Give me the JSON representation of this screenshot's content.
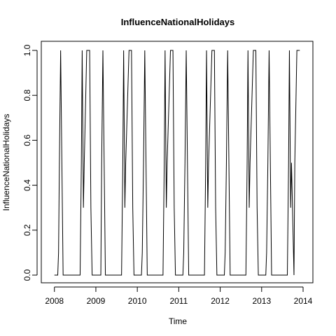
{
  "chart_data": {
    "type": "line",
    "title": "InfluenceNationalHolidays",
    "xlabel": "Time",
    "ylabel": "InfluenceNationalHolidays",
    "xlim": [
      2007.92,
      2014.0
    ],
    "ylim": [
      0.0,
      1.0
    ],
    "grid": false,
    "x_ticks": [
      {
        "value": 2008,
        "label": "2008"
      },
      {
        "value": 2009,
        "label": "2009"
      },
      {
        "value": 2010,
        "label": "2010"
      },
      {
        "value": 2011,
        "label": "2011"
      },
      {
        "value": 2012,
        "label": "2012"
      },
      {
        "value": 2013,
        "label": "2013"
      },
      {
        "value": 2014,
        "label": "2014"
      }
    ],
    "y_ticks": [
      {
        "value": 0.0,
        "label": "0.0"
      },
      {
        "value": 0.2,
        "label": "0.2"
      },
      {
        "value": 0.4,
        "label": "0.4"
      },
      {
        "value": 0.6,
        "label": "0.6"
      },
      {
        "value": 0.8,
        "label": "0.8"
      },
      {
        "value": 1.0,
        "label": "1.0"
      }
    ],
    "series": [
      {
        "line_color": "#000000",
        "points": [
          [
            2008.0,
            0.0
          ],
          [
            2008.08,
            0.0
          ],
          [
            2008.1,
            0.1
          ],
          [
            2008.12,
            0.5
          ],
          [
            2008.15,
            1.0
          ],
          [
            2008.18,
            0.5
          ],
          [
            2008.21,
            0.0
          ],
          [
            2008.4,
            0.0
          ],
          [
            2008.55,
            0.0
          ],
          [
            2008.62,
            0.0
          ],
          [
            2008.65,
            0.5
          ],
          [
            2008.67,
            1.0
          ],
          [
            2008.7,
            0.3
          ],
          [
            2008.72,
            0.5
          ],
          [
            2008.78,
            1.0
          ],
          [
            2008.85,
            1.0
          ],
          [
            2008.88,
            0.3
          ],
          [
            2008.91,
            0.0
          ],
          [
            2008.97,
            0.0
          ],
          [
            2009.0,
            0.0
          ],
          [
            2009.07,
            0.0
          ],
          [
            2009.12,
            0.0
          ],
          [
            2009.14,
            0.5
          ],
          [
            2009.17,
            1.0
          ],
          [
            2009.2,
            0.5
          ],
          [
            2009.23,
            0.0
          ],
          [
            2009.4,
            0.0
          ],
          [
            2009.55,
            0.0
          ],
          [
            2009.62,
            0.0
          ],
          [
            2009.65,
            0.5
          ],
          [
            2009.67,
            1.0
          ],
          [
            2009.7,
            0.3
          ],
          [
            2009.72,
            0.5
          ],
          [
            2009.8,
            1.0
          ],
          [
            2009.86,
            1.0
          ],
          [
            2009.89,
            0.3
          ],
          [
            2009.92,
            0.0
          ],
          [
            2009.97,
            0.0
          ],
          [
            2010.0,
            0.0
          ],
          [
            2010.1,
            0.0
          ],
          [
            2010.12,
            0.1
          ],
          [
            2010.15,
            0.5
          ],
          [
            2010.18,
            1.0
          ],
          [
            2010.21,
            0.5
          ],
          [
            2010.24,
            0.0
          ],
          [
            2010.4,
            0.0
          ],
          [
            2010.55,
            0.0
          ],
          [
            2010.62,
            0.0
          ],
          [
            2010.65,
            0.5
          ],
          [
            2010.67,
            1.0
          ],
          [
            2010.7,
            0.3
          ],
          [
            2010.72,
            0.5
          ],
          [
            2010.8,
            1.0
          ],
          [
            2010.86,
            1.0
          ],
          [
            2010.89,
            0.3
          ],
          [
            2010.92,
            0.0
          ],
          [
            2010.97,
            0.0
          ],
          [
            2011.0,
            0.0
          ],
          [
            2011.1,
            0.0
          ],
          [
            2011.12,
            0.1
          ],
          [
            2011.15,
            0.5
          ],
          [
            2011.18,
            1.0
          ],
          [
            2011.21,
            0.5
          ],
          [
            2011.24,
            0.0
          ],
          [
            2011.4,
            0.0
          ],
          [
            2011.55,
            0.0
          ],
          [
            2011.62,
            0.0
          ],
          [
            2011.65,
            0.5
          ],
          [
            2011.67,
            1.0
          ],
          [
            2011.7,
            0.3
          ],
          [
            2011.72,
            0.5
          ],
          [
            2011.8,
            1.0
          ],
          [
            2011.86,
            1.0
          ],
          [
            2011.89,
            0.3
          ],
          [
            2011.92,
            0.0
          ],
          [
            2011.97,
            0.0
          ],
          [
            2012.0,
            0.0
          ],
          [
            2012.1,
            0.0
          ],
          [
            2012.12,
            0.1
          ],
          [
            2012.15,
            0.5
          ],
          [
            2012.18,
            1.0
          ],
          [
            2012.21,
            0.5
          ],
          [
            2012.24,
            0.0
          ],
          [
            2012.4,
            0.0
          ],
          [
            2012.55,
            0.0
          ],
          [
            2012.62,
            0.0
          ],
          [
            2012.65,
            0.5
          ],
          [
            2012.67,
            1.0
          ],
          [
            2012.7,
            0.3
          ],
          [
            2012.72,
            0.5
          ],
          [
            2012.8,
            1.0
          ],
          [
            2012.86,
            1.0
          ],
          [
            2012.89,
            0.3
          ],
          [
            2012.92,
            0.0
          ],
          [
            2012.97,
            0.0
          ],
          [
            2013.0,
            0.0
          ],
          [
            2013.1,
            0.0
          ],
          [
            2013.12,
            0.1
          ],
          [
            2013.15,
            0.5
          ],
          [
            2013.18,
            1.0
          ],
          [
            2013.21,
            0.5
          ],
          [
            2013.24,
            0.0
          ],
          [
            2013.4,
            0.0
          ],
          [
            2013.55,
            0.0
          ],
          [
            2013.62,
            0.0
          ],
          [
            2013.65,
            0.5
          ],
          [
            2013.67,
            1.0
          ],
          [
            2013.7,
            0.3
          ],
          [
            2013.72,
            0.5
          ],
          [
            2013.78,
            0.0
          ],
          [
            2013.8,
            0.5
          ],
          [
            2013.85,
            1.0
          ],
          [
            2013.92,
            1.0
          ]
        ]
      }
    ]
  }
}
